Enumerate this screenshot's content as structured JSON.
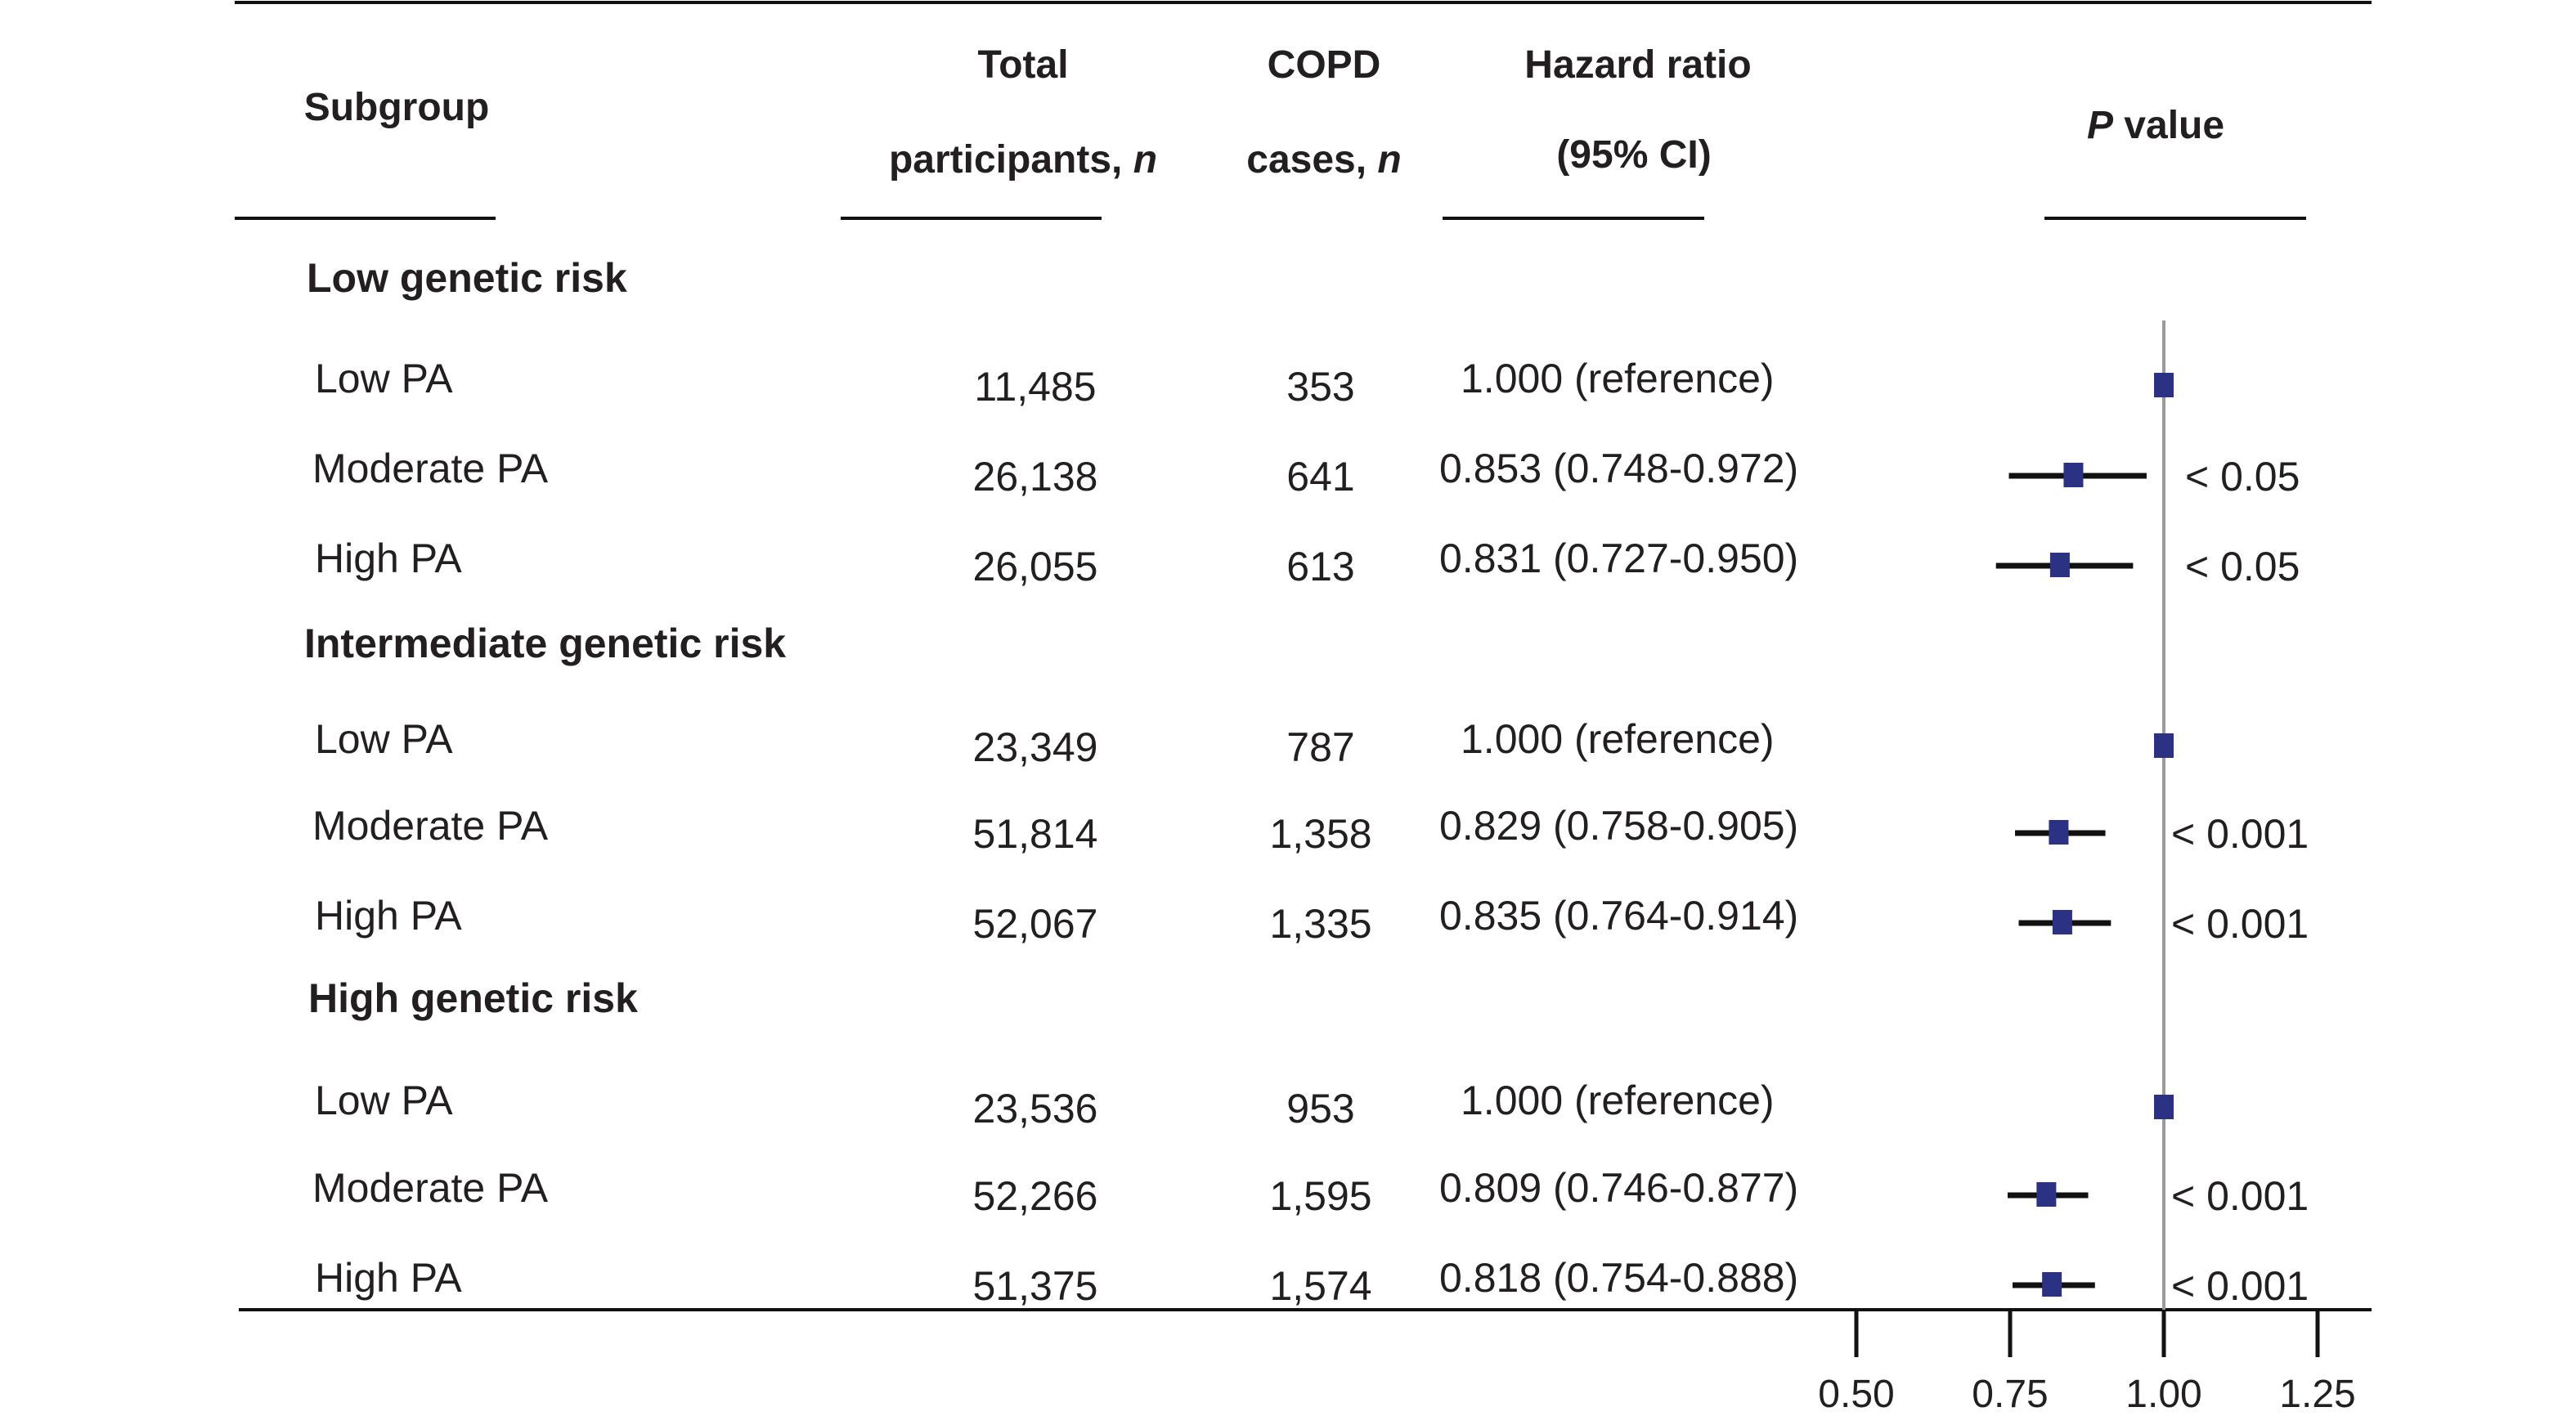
{
  "chart_data": {
    "type": "forest",
    "title": "",
    "columns": {
      "subgroup": "Subgroup",
      "total_line1": "Total",
      "total_line2": "participants, ",
      "total_line2_italic": "n",
      "cases_line1": "COPD",
      "cases_line2": "cases, ",
      "cases_line2_italic": "n",
      "hr_line1": "Hazard ratio",
      "hr_line2": "(95% CI)",
      "p_italic": "P",
      "p_rest": " value"
    },
    "groups": [
      {
        "name": "Low genetic risk",
        "rows": [
          {
            "label": "Low PA",
            "total": "11,485",
            "cases": "353",
            "hr_text": "1.000 (reference)",
            "hr": 1.0,
            "lo": 1.0,
            "hi": 1.0,
            "p": ""
          },
          {
            "label": "Moderate PA",
            "total": "26,138",
            "cases": "641",
            "hr_text": "0.853 (0.748-0.972)",
            "hr": 0.853,
            "lo": 0.748,
            "hi": 0.972,
            "p": "< 0.05"
          },
          {
            "label": "High PA",
            "total": "26,055",
            "cases": "613",
            "hr_text": "0.831 (0.727-0.950)",
            "hr": 0.831,
            "lo": 0.727,
            "hi": 0.95,
            "p": "< 0.05"
          }
        ]
      },
      {
        "name": "Intermediate genetic risk",
        "rows": [
          {
            "label": "Low PA",
            "total": "23,349",
            "cases": "787",
            "hr_text": "1.000 (reference)",
            "hr": 1.0,
            "lo": 1.0,
            "hi": 1.0,
            "p": ""
          },
          {
            "label": "Moderate PA",
            "total": "51,814",
            "cases": "1,358",
            "hr_text": "0.829 (0.758-0.905)",
            "hr": 0.829,
            "lo": 0.758,
            "hi": 0.905,
            "p": "< 0.001"
          },
          {
            "label": "High PA",
            "total": "52,067",
            "cases": "1,335",
            "hr_text": "0.835 (0.764-0.914)",
            "hr": 0.835,
            "lo": 0.764,
            "hi": 0.914,
            "p": "< 0.001"
          }
        ]
      },
      {
        "name": "High genetic risk",
        "rows": [
          {
            "label": "Low PA",
            "total": "23,536",
            "cases": "953",
            "hr_text": "1.000 (reference)",
            "hr": 1.0,
            "lo": 1.0,
            "hi": 1.0,
            "p": ""
          },
          {
            "label": "Moderate PA",
            "total": "52,266",
            "cases": "1,595",
            "hr_text": "0.809 (0.746-0.877)",
            "hr": 0.809,
            "lo": 0.746,
            "hi": 0.877,
            "p": "< 0.001"
          },
          {
            "label": "High PA",
            "total": "51,375",
            "cases": "1,574",
            "hr_text": "0.818 (0.754-0.888)",
            "hr": 0.818,
            "lo": 0.754,
            "hi": 0.888,
            "p": "< 0.001"
          }
        ]
      }
    ],
    "x_axis": {
      "ticks": [
        0.5,
        0.75,
        1.0,
        1.25
      ],
      "tick_labels": [
        "0.50",
        "0.75",
        "1.00",
        "1.25"
      ],
      "reference_line": 1.0
    },
    "colors": {
      "marker": "#2b3284",
      "ci_line": "#111111",
      "reference_line": "#9a9a9a",
      "rules": "#111111"
    }
  }
}
